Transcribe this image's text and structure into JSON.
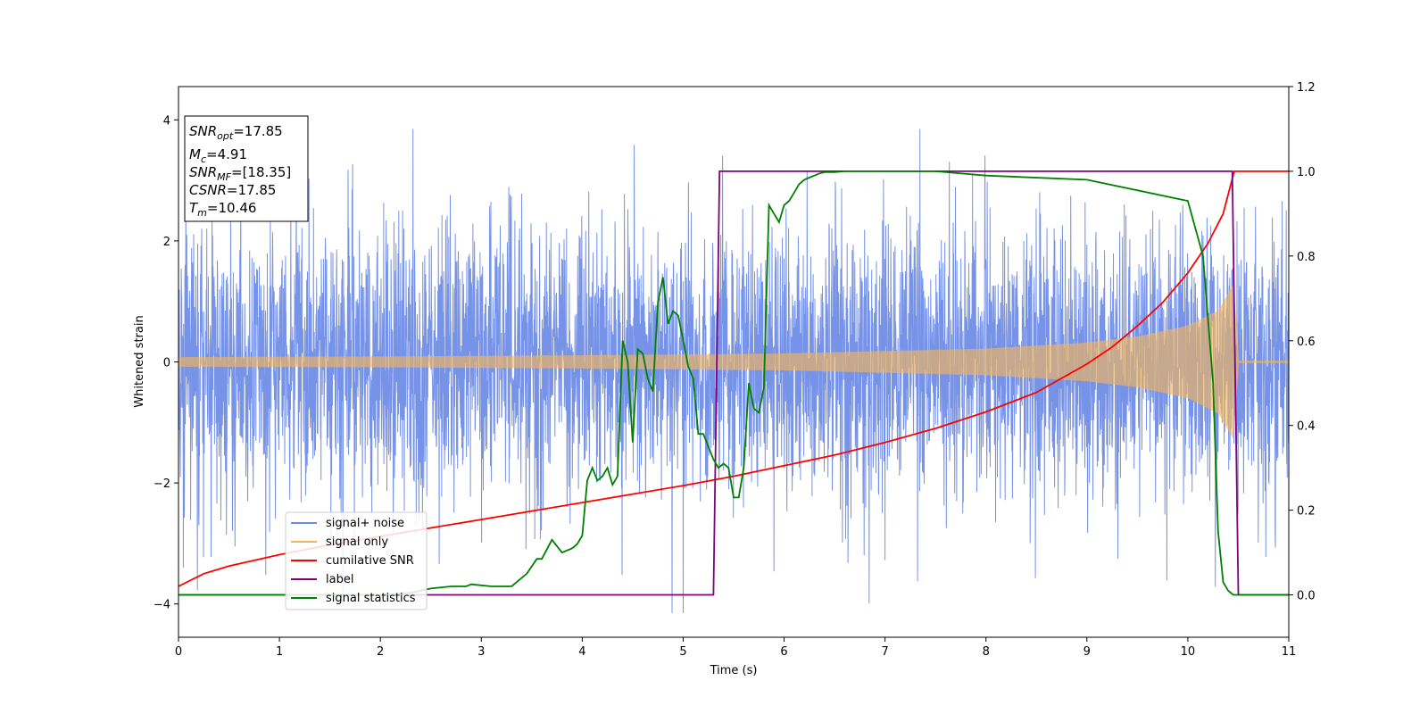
{
  "chart_data": {
    "type": "line",
    "title": "",
    "xlabel": "Time (s)",
    "ylabel": "Whitened strain",
    "xlim": [
      0,
      11
    ],
    "ylim": [
      -4.55,
      4.55
    ],
    "y2lim": [
      -0.1,
      1.2
    ],
    "x_ticks": [
      "0",
      "1",
      "2",
      "3",
      "4",
      "5",
      "6",
      "7",
      "8",
      "9",
      "10",
      "11"
    ],
    "y_ticks": [
      "−4",
      "−2",
      "0",
      "2",
      "4"
    ],
    "y2_ticks": [
      "0.0",
      "0.2",
      "0.4",
      "0.6",
      "0.8",
      "1.0",
      "1.2"
    ],
    "grid": false,
    "legend_position": "lower-left",
    "colors": {
      "signal_noise": "#6b8ae6",
      "signal_only": "#f5b455",
      "cumulative_snr": "#ff0000",
      "label": "#800080",
      "signal_statistics": "#008000"
    },
    "legend": [
      {
        "name": "signal+ noise",
        "color": "#6b8ae6"
      },
      {
        "name": "signal only",
        "color": "#f5b455"
      },
      {
        "name": "cumilative SNR",
        "color": "#ff0000"
      },
      {
        "name": "label",
        "color": "#800080"
      },
      {
        "name": "signal statistics",
        "color": "#008000"
      }
    ],
    "annotations": {
      "snr_opt": {
        "base": "SNR",
        "sub": "opt",
        "value": "=17.85"
      },
      "mc": {
        "base": "M",
        "sub": "c",
        "value": "=4.91"
      },
      "snr_mf": {
        "base": "SNR",
        "sub": "MF",
        "value": "=[18.35]"
      },
      "csnr": {
        "base": "CSNR",
        "value": "=17.85"
      },
      "tm": {
        "base": "T",
        "sub": "m",
        "value": "=10.46"
      }
    },
    "noise_amplitude": 1.5,
    "merger_time": 10.46,
    "signal_envelope": [
      [
        0,
        0.08
      ],
      [
        2,
        0.09
      ],
      [
        4,
        0.11
      ],
      [
        6,
        0.14
      ],
      [
        8,
        0.22
      ],
      [
        9,
        0.32
      ],
      [
        9.5,
        0.42
      ],
      [
        10,
        0.6
      ],
      [
        10.3,
        0.85
      ],
      [
        10.46,
        1.3
      ],
      [
        10.5,
        0.02
      ],
      [
        11,
        0.02
      ]
    ],
    "series": [
      {
        "name": "cumilative SNR",
        "axis": "right",
        "x": [
          0,
          0.25,
          0.5,
          1,
          1.5,
          2,
          2.5,
          3,
          3.5,
          4,
          4.5,
          5,
          5.5,
          6,
          6.5,
          7,
          7.5,
          8,
          8.5,
          9,
          9.25,
          9.5,
          9.75,
          10,
          10.2,
          10.35,
          10.46,
          11
        ],
        "y": [
          0.02,
          0.05,
          0.068,
          0.095,
          0.118,
          0.138,
          0.158,
          0.178,
          0.198,
          0.218,
          0.238,
          0.258,
          0.28,
          0.305,
          0.33,
          0.36,
          0.393,
          0.432,
          0.478,
          0.545,
          0.585,
          0.635,
          0.69,
          0.76,
          0.83,
          0.9,
          1.0,
          1.0
        ]
      },
      {
        "name": "label",
        "axis": "right",
        "x": [
          0,
          5.3,
          5.36,
          10.44,
          10.5,
          11
        ],
        "y": [
          0.0,
          0.0,
          1.0,
          1.0,
          0.0,
          0.0
        ]
      },
      {
        "name": "signal statistics",
        "axis": "right",
        "x": [
          0,
          1,
          2,
          2.3,
          2.5,
          2.7,
          2.85,
          2.9,
          3.1,
          3.3,
          3.45,
          3.55,
          3.6,
          3.7,
          3.8,
          3.9,
          3.95,
          4.0,
          4.05,
          4.1,
          4.15,
          4.2,
          4.25,
          4.3,
          4.35,
          4.4,
          4.45,
          4.5,
          4.55,
          4.6,
          4.65,
          4.7,
          4.75,
          4.8,
          4.85,
          4.9,
          4.95,
          5.0,
          5.05,
          5.1,
          5.15,
          5.2,
          5.25,
          5.3,
          5.35,
          5.4,
          5.45,
          5.5,
          5.55,
          5.6,
          5.65,
          5.7,
          5.75,
          5.8,
          5.85,
          5.9,
          5.95,
          6.0,
          6.05,
          6.1,
          6.15,
          6.2,
          6.25,
          6.3,
          6.35,
          6.4,
          6.5,
          6.6,
          6.7,
          6.8,
          7.0,
          7.5,
          8.0,
          9.0,
          10.0,
          10.15,
          10.25,
          10.3,
          10.35,
          10.4,
          10.45,
          10.5,
          10.55,
          11
        ],
        "y": [
          0.0,
          0.0,
          0.0,
          0.005,
          0.015,
          0.02,
          0.02,
          0.025,
          0.02,
          0.02,
          0.05,
          0.085,
          0.085,
          0.13,
          0.1,
          0.11,
          0.12,
          0.14,
          0.27,
          0.3,
          0.27,
          0.28,
          0.3,
          0.26,
          0.28,
          0.6,
          0.55,
          0.36,
          0.58,
          0.57,
          0.51,
          0.48,
          0.69,
          0.75,
          0.64,
          0.67,
          0.66,
          0.6,
          0.54,
          0.51,
          0.38,
          0.38,
          0.35,
          0.32,
          0.3,
          0.31,
          0.3,
          0.23,
          0.23,
          0.3,
          0.5,
          0.44,
          0.43,
          0.49,
          0.92,
          0.9,
          0.88,
          0.92,
          0.93,
          0.95,
          0.97,
          0.98,
          0.985,
          0.99,
          0.995,
          0.998,
          0.998,
          1.0,
          1.0,
          1.0,
          1.0,
          1.0,
          0.99,
          0.98,
          0.93,
          0.8,
          0.5,
          0.15,
          0.03,
          0.01,
          0.0,
          0.0,
          0.0,
          0.0
        ]
      }
    ]
  }
}
